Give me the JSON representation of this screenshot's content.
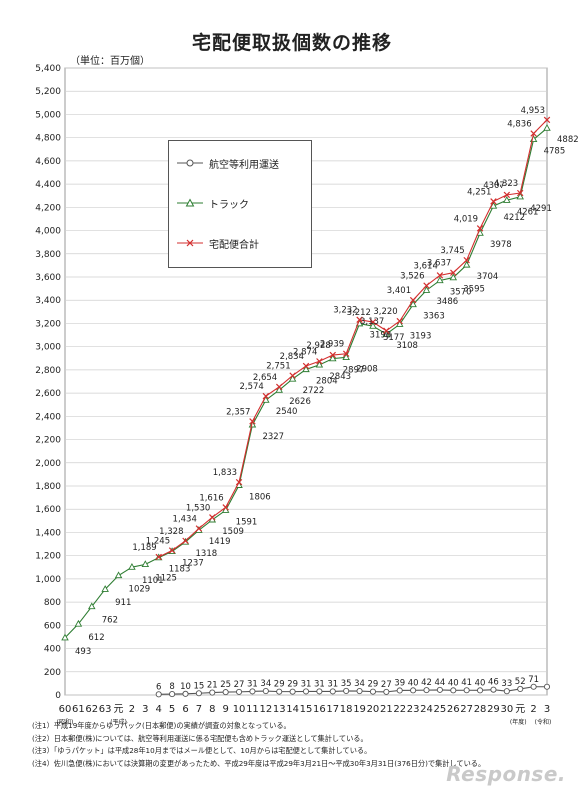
{
  "title": "宅配便取扱個数の推移",
  "unit": "（単位：百万個）",
  "legend": {
    "air": "航空等利用運送",
    "truck": "トラック",
    "total": "宅配便合計"
  },
  "notes": [
    "(注1）平成19年度からゆうパック(日本郵便)の実績が調査の対象となっている。",
    "(注2）日本郵便(株)については、航空等利用運送に係る宅配便も含めトラック運送として集計している。",
    "(注3）「ゆうパケット」は平成28年10月まではメール便として、10月からは宅配便として集計している。",
    "(注4）佐川急便(株)においては決算期の変更があったため、平成29年度は平成29年3月21日～平成30年3月31日(376日分)で集計している。"
  ],
  "axis_notes": {
    "showa": "(昭和)",
    "heisei": "(平成)",
    "reiwa": "(令和)",
    "fiscal": "(年度)"
  },
  "brand": "Response.",
  "colors": {
    "air": "#555555",
    "truck": "#2e7d32",
    "total": "#d32f2f",
    "grid": "#cfcfcf"
  },
  "chart_data": {
    "type": "line",
    "title": "宅配便取扱個数の推移",
    "ylabel": "（単位：百万個）",
    "ylim": [
      0,
      5400
    ],
    "yticks": [
      0,
      200,
      400,
      600,
      800,
      1000,
      1200,
      1400,
      1600,
      1800,
      2000,
      2200,
      2400,
      2600,
      2800,
      3000,
      3200,
      3400,
      3600,
      3800,
      4000,
      4200,
      4400,
      4600,
      4800,
      5000,
      5200,
      5400
    ],
    "ytick_labels": [
      "0",
      "200",
      "400",
      "600",
      "800",
      "1,000",
      "1,200",
      "1,400",
      "1,600",
      "1,800",
      "2,000",
      "2,200",
      "2,400",
      "2,600",
      "2,800",
      "3,000",
      "3,200",
      "3,400",
      "3,600",
      "3,800",
      "4,000",
      "4,200",
      "4,400",
      "4,600",
      "4,800",
      "5,000",
      "5,200",
      "5,400"
    ],
    "categories": [
      "60",
      "61",
      "62",
      "63",
      "元",
      "2",
      "3",
      "4",
      "5",
      "6",
      "7",
      "8",
      "9",
      "10",
      "11",
      "12",
      "13",
      "14",
      "15",
      "16",
      "17",
      "18",
      "19",
      "20",
      "21",
      "22",
      "23",
      "24",
      "25",
      "26",
      "27",
      "28",
      "29",
      "30",
      "元",
      "2",
      "3"
    ],
    "legend_position": "upper-left inside",
    "grid": true,
    "series": [
      {
        "name": "航空等利用運送",
        "marker": "circle",
        "values": [
          null,
          null,
          null,
          null,
          null,
          null,
          null,
          6,
          8,
          10,
          15,
          21,
          25,
          27,
          31,
          34,
          29,
          29,
          31,
          31,
          31,
          35,
          34,
          29,
          27,
          39,
          40,
          42,
          44,
          40,
          41,
          40,
          46,
          33,
          52,
          71,
          71
        ],
        "labels": [
          "",
          "",
          "",
          "",
          "",
          "",
          "",
          "6",
          "8",
          "10",
          "15",
          "21",
          "25",
          "27",
          "31",
          "34",
          "29",
          "29",
          "31",
          "31",
          "31",
          "35",
          "34",
          "29",
          "27",
          "39",
          "40",
          "42",
          "44",
          "40",
          "41",
          "40",
          "46",
          "33",
          "52",
          "71",
          ""
        ]
      },
      {
        "name": "トラック",
        "marker": "triangle",
        "values": [
          493,
          612,
          762,
          911,
          1029,
          1101,
          1125,
          1183,
          1237,
          1318,
          1419,
          1509,
          1591,
          1806,
          2327,
          2540,
          2626,
          2722,
          2804,
          2843,
          2897,
          2908,
          3198,
          3177,
          3108,
          3193,
          3363,
          3486,
          3570,
          3595,
          3704,
          3978,
          4212,
          4261,
          4291,
          4785,
          4882
        ],
        "labels": [
          "493",
          "612",
          "762",
          "911",
          "1029",
          "1101",
          "1125",
          "1183",
          "1237",
          "1318",
          "1419",
          "1509",
          "1591",
          "1806",
          "2327",
          "2540",
          "2626",
          "2722",
          "2804",
          "2843",
          "2897",
          "2908",
          "3198",
          "3177",
          "3108",
          "3193",
          "3363",
          "3486",
          "3570",
          "3595",
          "3704",
          "3978",
          "4212",
          "4261",
          "4291",
          "4785",
          "4882"
        ]
      },
      {
        "name": "宅配便合計",
        "marker": "x",
        "values": [
          null,
          null,
          null,
          null,
          null,
          null,
          null,
          1189,
          1245,
          1328,
          1434,
          1530,
          1616,
          1833,
          2357,
          2574,
          2654,
          2751,
          2834,
          2874,
          2928,
          2939,
          3232,
          3212,
          3137,
          3220,
          3401,
          3526,
          3614,
          3637,
          3745,
          4019,
          4251,
          4307,
          4323,
          4836,
          4953
        ],
        "labels": [
          "",
          "",
          "",
          "",
          "",
          "",
          "",
          "1,189",
          "1,245",
          "1,328",
          "1,434",
          "1,530",
          "1,616",
          "1,833",
          "2,357",
          "2,574",
          "2,654",
          "2,751",
          "2,834",
          "2,874",
          "2,928",
          "2,939",
          "3,232",
          "3,212",
          "3,137",
          "3,220",
          "3,401",
          "3,526",
          "3,614",
          "3,637",
          "3,745",
          "4,019",
          "4,251",
          "4307",
          "4,323",
          "4,836",
          "4,953"
        ]
      }
    ]
  }
}
